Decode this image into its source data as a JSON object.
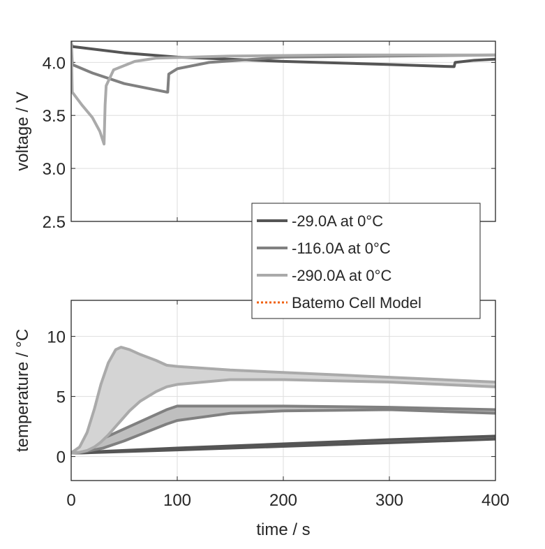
{
  "chart_data": [
    {
      "type": "line",
      "ylabel": "voltage / V",
      "xlim": [
        0,
        400
      ],
      "ylim": [
        2.5,
        4.2
      ],
      "xticks": [
        0,
        100,
        200,
        300,
        400
      ],
      "yticks": [
        2.5,
        3.0,
        3.5,
        4.0
      ],
      "ytick_labels": [
        "2.5",
        "3.0",
        "3.5",
        "4.0"
      ],
      "grid": true,
      "series": [
        {
          "name": "-29.0A at 0°C",
          "color": "#555555",
          "x": [
            0,
            1,
            50,
            100,
            200,
            300,
            360,
            361,
            362,
            380,
            400
          ],
          "y": [
            4.18,
            4.15,
            4.09,
            4.05,
            4.01,
            3.98,
            3.96,
            3.96,
            4.0,
            4.02,
            4.03
          ]
        },
        {
          "name": "-116.0A at 0°C",
          "color": "#808080",
          "x": [
            0,
            1,
            20,
            50,
            90,
            91,
            92,
            100,
            130,
            200,
            300,
            400
          ],
          "y": [
            4.2,
            3.98,
            3.9,
            3.8,
            3.72,
            3.72,
            3.89,
            3.94,
            4.0,
            4.05,
            4.06,
            4.07
          ]
        },
        {
          "name": "-290.0A at 0°C",
          "color": "#aaaaaa",
          "x": [
            0,
            1,
            10,
            20,
            27,
            31,
            32,
            33,
            40,
            60,
            80,
            150,
            250,
            400
          ],
          "y": [
            4.2,
            3.72,
            3.6,
            3.48,
            3.35,
            3.23,
            3.6,
            3.78,
            3.93,
            4.01,
            4.04,
            4.06,
            4.07,
            4.07
          ]
        }
      ]
    },
    {
      "type": "area",
      "xlabel": "time / s",
      "ylabel": "temperature / °C",
      "xlim": [
        0,
        400
      ],
      "ylim": [
        -2,
        13
      ],
      "xticks": [
        0,
        100,
        200,
        300,
        400
      ],
      "xtick_labels": [
        "0",
        "100",
        "200",
        "300",
        "400"
      ],
      "yticks": [
        0,
        5,
        10
      ],
      "ytick_labels": [
        "0",
        "5",
        "10"
      ],
      "grid": true,
      "series": [
        {
          "name": "-29.0A at 0°C",
          "color": "#555555",
          "fill": "#8a8a8a",
          "x": [
            0,
            10,
            100,
            200,
            300,
            400
          ],
          "upper": [
            0.3,
            0.35,
            0.7,
            1.05,
            1.4,
            1.7
          ],
          "lower": [
            0.3,
            0.3,
            0.55,
            0.85,
            1.15,
            1.45
          ]
        },
        {
          "name": "-116.0A at 0°C",
          "color": "#808080",
          "fill": "#bfbfbf",
          "x": [
            0,
            10,
            30,
            50,
            70,
            90,
            100,
            150,
            200,
            300,
            400
          ],
          "upper": [
            0.3,
            0.6,
            1.5,
            2.3,
            3.1,
            3.9,
            4.2,
            4.2,
            4.2,
            4.1,
            3.9
          ],
          "lower": [
            0.3,
            0.35,
            0.7,
            1.3,
            2.0,
            2.7,
            3.0,
            3.6,
            3.8,
            3.9,
            3.6
          ]
        },
        {
          "name": "-290.0A at 0°C",
          "color": "#aaaaaa",
          "fill": "#d4d4d4",
          "x": [
            0,
            8,
            15,
            22,
            28,
            35,
            42,
            47,
            55,
            65,
            80,
            90,
            100,
            150,
            200,
            250,
            300,
            400
          ],
          "upper": [
            0.3,
            0.8,
            2.0,
            4.0,
            6.0,
            7.8,
            8.9,
            9.1,
            8.9,
            8.5,
            8.0,
            7.6,
            7.5,
            7.2,
            7.0,
            6.8,
            6.6,
            6.2
          ],
          "lower": [
            0.3,
            0.35,
            0.5,
            0.8,
            1.2,
            1.8,
            2.5,
            3.0,
            3.8,
            4.6,
            5.4,
            5.8,
            6.0,
            6.4,
            6.4,
            6.3,
            6.2,
            5.8
          ]
        }
      ]
    }
  ],
  "legend": {
    "placement": "between-plots-right",
    "entries": [
      {
        "label": "-29.0A at 0°C",
        "color": "#555555",
        "style": "solid"
      },
      {
        "label": "-116.0A at 0°C",
        "color": "#808080",
        "style": "solid"
      },
      {
        "label": "-290.0A at 0°C",
        "color": "#aaaaaa",
        "style": "solid"
      },
      {
        "label": "Batemo Cell Model",
        "color": "#f06010",
        "style": "dotted"
      }
    ]
  }
}
